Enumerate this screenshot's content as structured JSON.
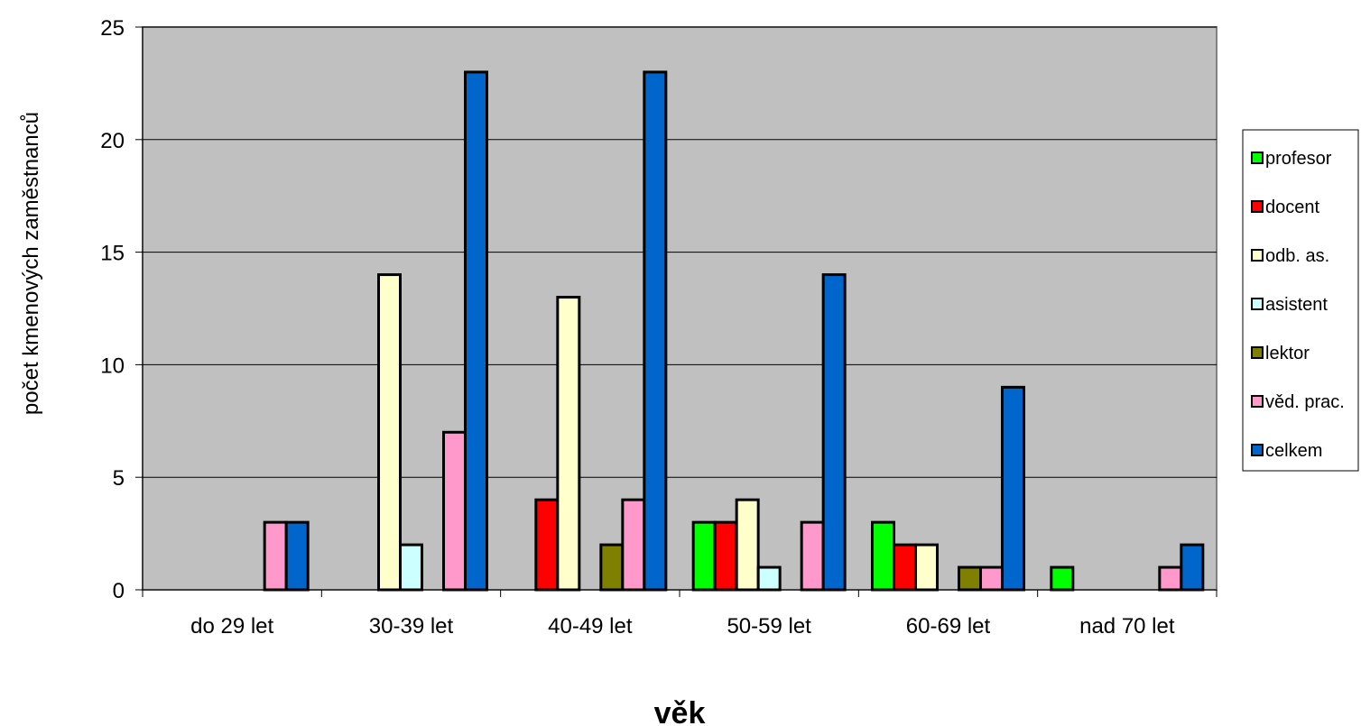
{
  "chart_data": {
    "type": "bar",
    "title": "",
    "xlabel": "věk",
    "ylabel": "počet kmenových zaměstnanců",
    "ylim": [
      0,
      25
    ],
    "yticks": [
      0,
      5,
      10,
      15,
      20,
      25
    ],
    "grid": true,
    "legend_position": "right",
    "plot_background": "#C0C0C0",
    "categories": [
      "do 29 let",
      "30-39 let",
      "40-49 let",
      "50-59 let",
      "60-69 let",
      "nad 70 let"
    ],
    "series": [
      {
        "name": "profesor",
        "color": "#00FF00",
        "values": [
          0,
          0,
          0,
          3,
          3,
          1
        ]
      },
      {
        "name": "docent",
        "color": "#FF0000",
        "values": [
          0,
          0,
          4,
          3,
          2,
          0
        ]
      },
      {
        "name": "odb. as.",
        "color": "#FFFFCC",
        "values": [
          0,
          14,
          13,
          4,
          2,
          0
        ]
      },
      {
        "name": "asistent",
        "color": "#CCFFFF",
        "values": [
          0,
          2,
          0,
          1,
          0,
          0
        ]
      },
      {
        "name": "lektor",
        "color": "#808000",
        "values": [
          0,
          0,
          2,
          0,
          1,
          0
        ]
      },
      {
        "name": "věd. prac.",
        "color": "#FF99CC",
        "values": [
          3,
          7,
          4,
          3,
          1,
          1
        ]
      },
      {
        "name": "celkem",
        "color": "#0066CC",
        "values": [
          3,
          23,
          23,
          14,
          9,
          2
        ]
      }
    ]
  }
}
